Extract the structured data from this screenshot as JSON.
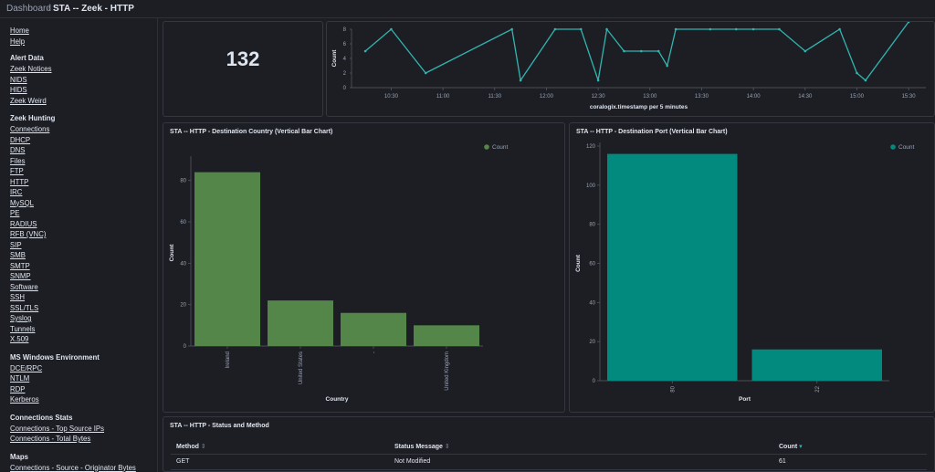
{
  "breadcrumb": {
    "root": "Dashboard",
    "separator": "/",
    "current": "STA -- Zeek - HTTP"
  },
  "sidebar": {
    "top_links": [
      "Home",
      "Help"
    ],
    "sections": [
      {
        "title": "Alert Data",
        "links": [
          "Zeek Notices",
          "NIDS",
          "HIDS",
          "Zeek Weird"
        ]
      },
      {
        "title": "Zeek Hunting",
        "links": [
          "Connections",
          "DHCP",
          "DNS",
          "Files",
          "FTP",
          "HTTP",
          "IRC",
          "MySQL",
          "PE",
          "RADIUS",
          "RFB (VNC)",
          "SIP",
          "SMB",
          "SMTP",
          "SNMP",
          "Software",
          "SSH",
          "SSL/TLS",
          "Syslog",
          "Tunnels",
          "X.509"
        ]
      },
      {
        "title": "MS Windows Environment",
        "links": [
          "DCE/RPC",
          "NTLM",
          "RDP",
          "Kerberos"
        ]
      },
      {
        "title": "Connections Stats",
        "links": [
          "Connections - Top Source IPs",
          "Connections - Total Bytes"
        ]
      },
      {
        "title": "Maps",
        "links": [
          "Connections - Source - Originator Bytes"
        ]
      }
    ]
  },
  "metric": {
    "value": "132"
  },
  "colors": {
    "line": "#30b5b0",
    "country_bar": "#54864a",
    "port_bar": "#038a7f",
    "background": "#1d1e24"
  },
  "chart_data": [
    {
      "type": "line",
      "title": "",
      "xlabel": "coralogix.timestamp per 5 minutes",
      "ylabel": "Count",
      "ylim": [
        0,
        8
      ],
      "yticks": [
        "0",
        "2",
        "4",
        "6",
        "8"
      ],
      "xticks": [
        "10:30",
        "11:00",
        "11:30",
        "12:00",
        "12:30",
        "13:00",
        "13:30",
        "14:00",
        "14:30",
        "15:00",
        "15:30"
      ],
      "x": [
        "10:15",
        "10:30",
        "10:50",
        "11:40",
        "11:45",
        "12:05",
        "12:20",
        "12:30",
        "12:35",
        "12:45",
        "12:55",
        "13:05",
        "13:10",
        "13:15",
        "13:35",
        "13:50",
        "14:00",
        "14:15",
        "14:30",
        "14:50",
        "15:00",
        "15:05",
        "15:30"
      ],
      "values": [
        5,
        8,
        2,
        8,
        1,
        8,
        8,
        1,
        8,
        5,
        5,
        5,
        3,
        8,
        8,
        8,
        8,
        8,
        5,
        8,
        2,
        1,
        9
      ],
      "legend": "none"
    },
    {
      "type": "bar",
      "title": "STA -- HTTP - Destination Country (Vertical Bar Chart)",
      "xlabel": "Country",
      "ylabel": "Count",
      "ylim": [
        0,
        90
      ],
      "yticks": [
        "0",
        "20",
        "40",
        "60",
        "80"
      ],
      "categories": [
        "Ireland",
        "United States",
        "-",
        "United Kingdom"
      ],
      "series": [
        {
          "name": "Count",
          "values": [
            84,
            22,
            16,
            10
          ]
        }
      ],
      "legend": "top-right"
    },
    {
      "type": "bar",
      "title": "STA -- HTTP - Destination Port (Vertical Bar Chart)",
      "xlabel": "Port",
      "ylabel": "Count",
      "ylim": [
        0,
        120
      ],
      "yticks": [
        "0",
        "20",
        "40",
        "60",
        "80",
        "100",
        "120"
      ],
      "categories": [
        "80",
        "22"
      ],
      "series": [
        {
          "name": "Count",
          "values": [
            116,
            16
          ]
        }
      ],
      "legend": "top-right"
    }
  ],
  "table": {
    "title": "STA -- HTTP - Status and Method",
    "columns": [
      {
        "label": "Method",
        "sort": "⇕"
      },
      {
        "label": "Status Message",
        "sort": "⇕"
      },
      {
        "label": "Count",
        "sort": "▾"
      }
    ],
    "rows": [
      [
        "GET",
        "Not Modified",
        "61"
      ]
    ]
  }
}
